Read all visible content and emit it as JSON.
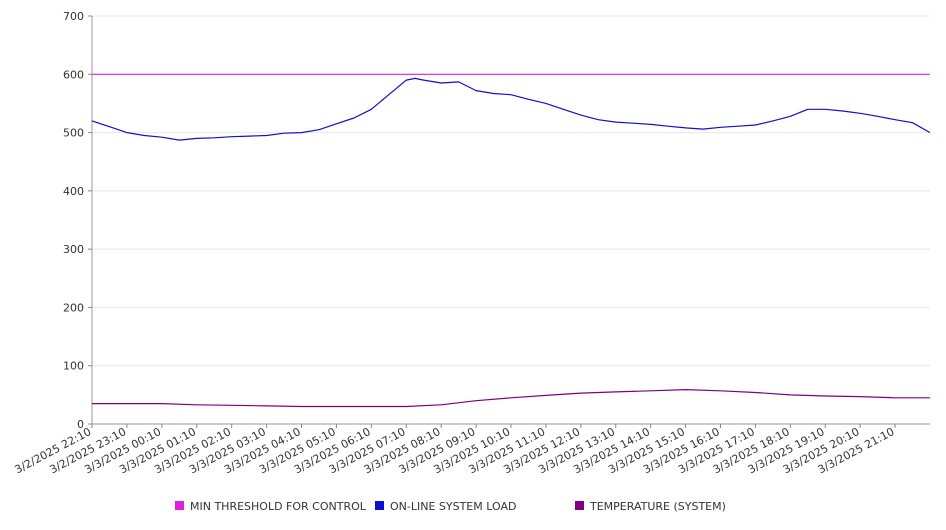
{
  "chart_data": {
    "type": "line",
    "ylim": [
      0,
      700
    ],
    "y_ticks": [
      0,
      100,
      200,
      300,
      400,
      500,
      600,
      700
    ],
    "grid": true,
    "legend_position": "bottom",
    "x_tick_labels": [
      "3/2/2025 22:10",
      "3/2/2025 23:10",
      "3/3/2025 00:10",
      "3/3/2025 01:10",
      "3/3/2025 02:10",
      "3/3/2025 03:10",
      "3/3/2025 04:10",
      "3/3/2025 05:10",
      "3/3/2025 06:10",
      "3/3/2025 07:10",
      "3/3/2025 08:10",
      "3/3/2025 09:10",
      "3/3/2025 10:10",
      "3/3/2025 11:10",
      "3/3/2025 12:10",
      "3/3/2025 13:10",
      "3/3/2025 14:10",
      "3/3/2025 15:10",
      "3/3/2025 16:10",
      "3/3/2025 17:10",
      "3/3/2025 18:10",
      "3/3/2025 19:10",
      "3/3/2025 20:10",
      "3/3/2025 21:10"
    ],
    "x_range": [
      "3/2/2025 22:10",
      "3/3/2025 22:10"
    ],
    "series": [
      {
        "name": "MIN THRESHOLD FOR CONTROL",
        "color": "#e020e0",
        "points": [
          [
            "3/2/2025 22:10",
            600
          ],
          [
            "3/3/2025 22:10",
            600
          ]
        ]
      },
      {
        "name": "ON-LINE SYSTEM LOAD",
        "color": "#1010cc",
        "points": [
          [
            "3/2/2025 22:10",
            520
          ],
          [
            "3/2/2025 22:40",
            510
          ],
          [
            "3/2/2025 23:10",
            500
          ],
          [
            "3/2/2025 23:40",
            495
          ],
          [
            "3/3/2025 00:10",
            492
          ],
          [
            "3/3/2025 00:40",
            487
          ],
          [
            "3/3/2025 01:10",
            490
          ],
          [
            "3/3/2025 01:40",
            491
          ],
          [
            "3/3/2025 02:10",
            493
          ],
          [
            "3/3/2025 02:40",
            494
          ],
          [
            "3/3/2025 03:10",
            495
          ],
          [
            "3/3/2025 03:40",
            499
          ],
          [
            "3/3/2025 04:10",
            500
          ],
          [
            "3/3/2025 04:40",
            505
          ],
          [
            "3/3/2025 05:10",
            515
          ],
          [
            "3/3/2025 05:40",
            525
          ],
          [
            "3/3/2025 06:10",
            540
          ],
          [
            "3/3/2025 06:40",
            565
          ],
          [
            "3/3/2025 07:10",
            590
          ],
          [
            "3/3/2025 07:25",
            593
          ],
          [
            "3/3/2025 07:40",
            590
          ],
          [
            "3/3/2025 08:10",
            585
          ],
          [
            "3/3/2025 08:40",
            587
          ],
          [
            "3/3/2025 09:10",
            572
          ],
          [
            "3/3/2025 09:40",
            567
          ],
          [
            "3/3/2025 10:10",
            565
          ],
          [
            "3/3/2025 10:40",
            557
          ],
          [
            "3/3/2025 11:10",
            550
          ],
          [
            "3/3/2025 11:40",
            540
          ],
          [
            "3/3/2025 12:10",
            530
          ],
          [
            "3/3/2025 12:40",
            522
          ],
          [
            "3/3/2025 13:10",
            518
          ],
          [
            "3/3/2025 13:40",
            516
          ],
          [
            "3/3/2025 14:10",
            514
          ],
          [
            "3/3/2025 14:40",
            511
          ],
          [
            "3/3/2025 15:10",
            508
          ],
          [
            "3/3/2025 15:40",
            506
          ],
          [
            "3/3/2025 16:10",
            509
          ],
          [
            "3/3/2025 16:40",
            511
          ],
          [
            "3/3/2025 17:10",
            513
          ],
          [
            "3/3/2025 17:40",
            520
          ],
          [
            "3/3/2025 18:10",
            528
          ],
          [
            "3/3/2025 18:40",
            540
          ],
          [
            "3/3/2025 19:10",
            540
          ],
          [
            "3/3/2025 19:40",
            537
          ],
          [
            "3/3/2025 20:10",
            533
          ],
          [
            "3/3/2025 20:40",
            528
          ],
          [
            "3/3/2025 21:10",
            522
          ],
          [
            "3/3/2025 21:40",
            517
          ],
          [
            "3/3/2025 22:10",
            500
          ]
        ]
      },
      {
        "name": "TEMPERATURE (SYSTEM)",
        "color": "#800080",
        "points": [
          [
            "3/2/2025 22:10",
            35
          ],
          [
            "3/2/2025 23:10",
            35
          ],
          [
            "3/3/2025 00:10",
            35
          ],
          [
            "3/3/2025 01:10",
            33
          ],
          [
            "3/3/2025 02:10",
            32
          ],
          [
            "3/3/2025 03:10",
            31
          ],
          [
            "3/3/2025 04:10",
            30
          ],
          [
            "3/3/2025 05:10",
            30
          ],
          [
            "3/3/2025 06:10",
            30
          ],
          [
            "3/3/2025 07:10",
            30
          ],
          [
            "3/3/2025 08:10",
            33
          ],
          [
            "3/3/2025 09:10",
            40
          ],
          [
            "3/3/2025 10:10",
            45
          ],
          [
            "3/3/2025 11:10",
            49
          ],
          [
            "3/3/2025 12:10",
            53
          ],
          [
            "3/3/2025 13:10",
            55
          ],
          [
            "3/3/2025 14:10",
            57
          ],
          [
            "3/3/2025 15:10",
            59
          ],
          [
            "3/3/2025 16:10",
            57
          ],
          [
            "3/3/2025 17:10",
            54
          ],
          [
            "3/3/2025 18:10",
            50
          ],
          [
            "3/3/2025 19:10",
            48
          ],
          [
            "3/3/2025 20:10",
            47
          ],
          [
            "3/3/2025 21:10",
            45
          ],
          [
            "3/3/2025 22:10",
            45
          ]
        ]
      }
    ]
  }
}
